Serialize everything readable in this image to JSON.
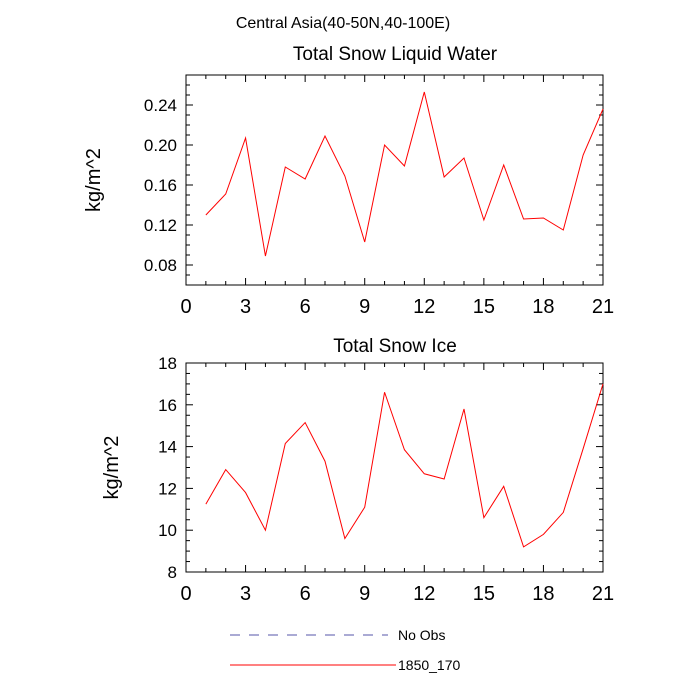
{
  "suptitle": "Central Asia(40-50N,40-100E)",
  "chart_data": [
    {
      "type": "line",
      "title": "Total Snow Liquid Water",
      "xlabel": "",
      "ylabel": "kg/m^2",
      "xlim": [
        0,
        21
      ],
      "ylim": [
        0.06,
        0.27
      ],
      "xticks": [
        0,
        3,
        6,
        9,
        12,
        15,
        18,
        21
      ],
      "xtick_labels": [
        "0",
        "3",
        "6",
        "9",
        "12",
        "15",
        "18",
        "21"
      ],
      "yticks": [
        0.08,
        0.12,
        0.16,
        0.2,
        0.24
      ],
      "ytick_labels": [
        "0.08",
        "0.12",
        "0.16",
        "0.20",
        "0.24"
      ],
      "x_minor_step": 1,
      "y_minor_step": 0.01,
      "series": [
        {
          "name": "1850_170",
          "color": "#ff0000",
          "x": [
            1,
            2,
            3,
            4,
            5,
            6,
            7,
            8,
            9,
            10,
            11,
            12,
            13,
            14,
            15,
            16,
            17,
            18,
            19,
            20,
            21
          ],
          "values": [
            0.13,
            0.151,
            0.207,
            0.089,
            0.178,
            0.166,
            0.209,
            0.169,
            0.103,
            0.2,
            0.179,
            0.253,
            0.168,
            0.187,
            0.125,
            0.18,
            0.126,
            0.127,
            0.115,
            0.19,
            0.236
          ]
        }
      ]
    },
    {
      "type": "line",
      "title": "Total Snow Ice",
      "xlabel": "",
      "ylabel": "kg/m^2",
      "xlim": [
        0,
        21
      ],
      "ylim": [
        8,
        18
      ],
      "xticks": [
        0,
        3,
        6,
        9,
        12,
        15,
        18,
        21
      ],
      "xtick_labels": [
        "0",
        "3",
        "6",
        "9",
        "12",
        "15",
        "18",
        "21"
      ],
      "yticks": [
        8,
        10,
        12,
        14,
        16,
        18
      ],
      "ytick_labels": [
        "8",
        "10",
        "12",
        "14",
        "16",
        "18"
      ],
      "x_minor_step": 1,
      "y_minor_step": 0.5,
      "series": [
        {
          "name": "1850_170",
          "color": "#ff0000",
          "x": [
            1,
            2,
            3,
            4,
            5,
            6,
            7,
            8,
            9,
            10,
            11,
            12,
            13,
            14,
            15,
            16,
            17,
            18,
            19,
            20,
            21
          ],
          "values": [
            11.25,
            12.9,
            11.8,
            10.0,
            14.15,
            15.15,
            13.3,
            9.6,
            11.1,
            16.6,
            13.85,
            12.7,
            12.45,
            15.8,
            10.6,
            12.1,
            9.2,
            9.8,
            10.85,
            13.9,
            17.0
          ]
        }
      ]
    }
  ],
  "legend": [
    {
      "label": "No Obs",
      "color": "#5555aa",
      "style": "dashed"
    },
    {
      "label": "1850_170",
      "color": "#ff0000",
      "style": "solid"
    }
  ]
}
